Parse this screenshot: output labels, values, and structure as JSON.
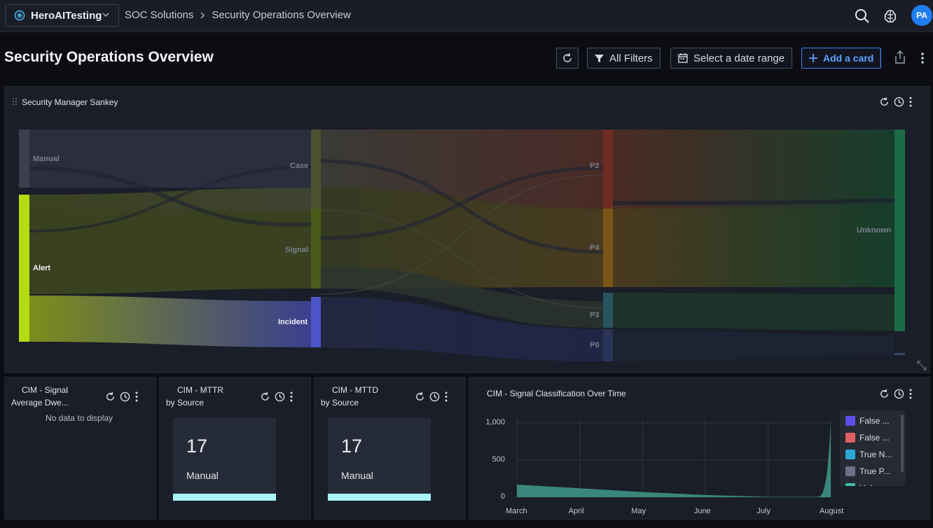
{
  "header": {
    "workspace": "HeroAITesting",
    "breadcrumb": [
      "SOC Solutions",
      "Security Operations Overview"
    ],
    "avatar_initials": "PA"
  },
  "page": {
    "title": "Security Operations Overview"
  },
  "toolbar": {
    "filters_label": "All Filters",
    "date_label": "Select a date range",
    "add_card_label": "Add a card"
  },
  "sankey": {
    "title": "Security Manager Sankey",
    "nodes": {
      "manual": "Manual",
      "alert": "Alert",
      "case": "Case",
      "signal": "Signal",
      "incident": "Incident",
      "p2": "P2",
      "p4": "P4",
      "p3": "P3",
      "p0": "P0",
      "unknown": "Unknown"
    }
  },
  "cards": {
    "dwell": {
      "title_line1": "CIM - Signal",
      "title_line2": "Average Dwe...",
      "empty": "No data to display"
    },
    "mttr": {
      "title_line1": "CIM - MTTR",
      "title_line2": "by Source",
      "value": "17",
      "label": "Manual"
    },
    "mttd": {
      "title_line1": "CIM - MTTD",
      "title_line2": "by Source",
      "value": "17",
      "label": "Manual"
    },
    "classification": {
      "title": "CIM - Signal Classification Over Time"
    }
  },
  "chart_data": {
    "type": "area",
    "title": "CIM - Signal Classification Over Time",
    "x": [
      "March",
      "April",
      "May",
      "June",
      "July",
      "August"
    ],
    "y_ticks": [
      "1,000",
      "500",
      "0"
    ],
    "ylim": [
      0,
      1000
    ],
    "series": [
      {
        "name": "Unknown",
        "values": [
          170,
          120,
          70,
          30,
          5,
          1040
        ]
      }
    ],
    "legend": [
      "False ...",
      "False ...",
      "True N...",
      "True P...",
      "Unkn..."
    ],
    "legend_colors": [
      "#5b4fe8",
      "#e0605f",
      "#2ca8d8",
      "#6b7085",
      "#3fbfa3"
    ],
    "legend_position": "right",
    "grid": true
  }
}
